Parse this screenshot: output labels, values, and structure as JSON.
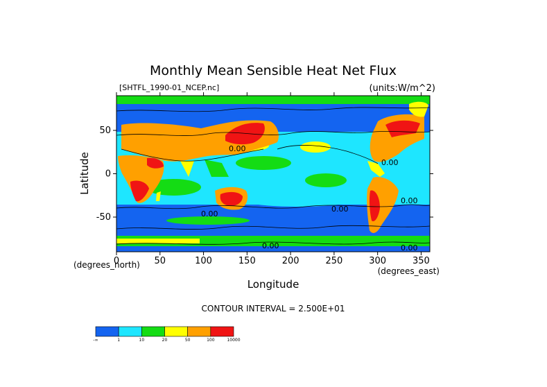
{
  "chart_data": {
    "type": "heatmap",
    "title": "Monthly Mean Sensible Heat Net Flux",
    "file_label": "[SHTFL_1990-01_NCEP.nc]",
    "units_label": "(units:W/m^2)",
    "xlabel": "Longitude",
    "ylabel": "Latitude",
    "x_unit_note": "(degrees_east)",
    "y_unit_note": "(degrees_north)",
    "xlim": [
      0,
      360
    ],
    "ylim": [
      -90,
      90
    ],
    "x_ticks": [
      0,
      50,
      100,
      150,
      200,
      250,
      300,
      350
    ],
    "y_ticks": [
      -50,
      0,
      50
    ],
    "contour_interval_text": "CONTOUR INTERVAL = 2.500E+01",
    "contour_labels": [
      "0.00",
      "0.00",
      "0.00",
      "0.00",
      "0.00",
      "0.00",
      "0.00"
    ],
    "colorbar": {
      "colors": [
        "#1464f0",
        "#1ee6ff",
        "#14dc14",
        "#ffff00",
        "#ffa000",
        "#f01414"
      ],
      "tick_labels": [
        "-∞",
        "1",
        "10",
        "20",
        "50",
        "100",
        "10000"
      ]
    }
  }
}
